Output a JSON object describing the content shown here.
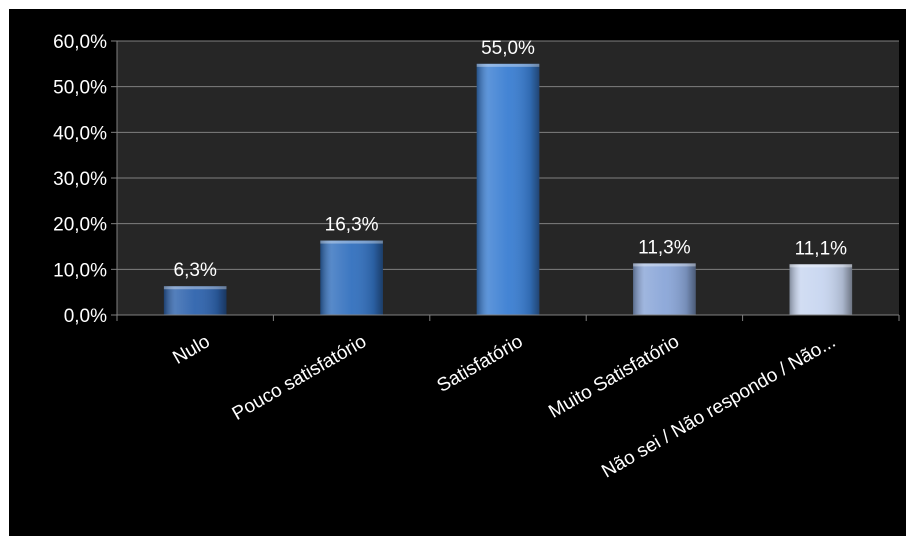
{
  "chart_data": {
    "type": "bar",
    "categories": [
      "Nulo",
      "Pouco satisfatório",
      "Satisfatório",
      "Muito Satisfatório",
      "Não sei / Não respondo / Não..."
    ],
    "values": [
      6.3,
      16.3,
      55.0,
      11.3,
      11.1
    ],
    "data_labels": [
      "6,3%",
      "16,3%",
      "55,0%",
      "11,3%",
      "11,1%"
    ],
    "bar_colors": [
      "#2e63ad",
      "#3270be",
      "#3a7ed2",
      "#8aa6d8",
      "#c8d6f0"
    ],
    "ylim": [
      0,
      60
    ],
    "yticks": [
      0,
      10,
      20,
      30,
      40,
      50,
      60
    ],
    "ytick_labels": [
      "0,0%",
      "10,0%",
      "20,0%",
      "30,0%",
      "40,0%",
      "50,0%",
      "60,0%"
    ],
    "grid": true,
    "colors": {
      "page_background": "#000000",
      "plot_background": "#262626",
      "grid": "#808080",
      "text": "#ffffff"
    }
  }
}
